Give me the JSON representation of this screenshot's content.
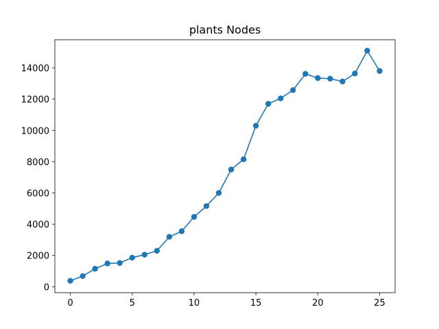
{
  "chart_data": {
    "type": "line",
    "title": "plants Nodes",
    "xlabel": "",
    "ylabel": "",
    "grid": false,
    "xlim": [
      -1.25,
      26.25
    ],
    "ylim": [
      -380,
      15800
    ],
    "xticks": [
      0,
      5,
      10,
      15,
      20,
      25
    ],
    "yticks": [
      0,
      2000,
      4000,
      6000,
      8000,
      10000,
      12000,
      14000
    ],
    "series": [
      {
        "color": "#1f77b4",
        "marker": "circle",
        "x": [
          0,
          1,
          2,
          3,
          4,
          5,
          6,
          7,
          8,
          9,
          10,
          11,
          12,
          13,
          14,
          15,
          16,
          17,
          18,
          19,
          20,
          21,
          22,
          23,
          24,
          25
        ],
        "values": [
          380,
          680,
          1150,
          1490,
          1520,
          1860,
          2050,
          2300,
          3190,
          3550,
          4470,
          5160,
          6000,
          7500,
          8150,
          10300,
          11700,
          12050,
          12580,
          13620,
          13350,
          13310,
          13130,
          13640,
          15100,
          13800
        ]
      }
    ]
  }
}
